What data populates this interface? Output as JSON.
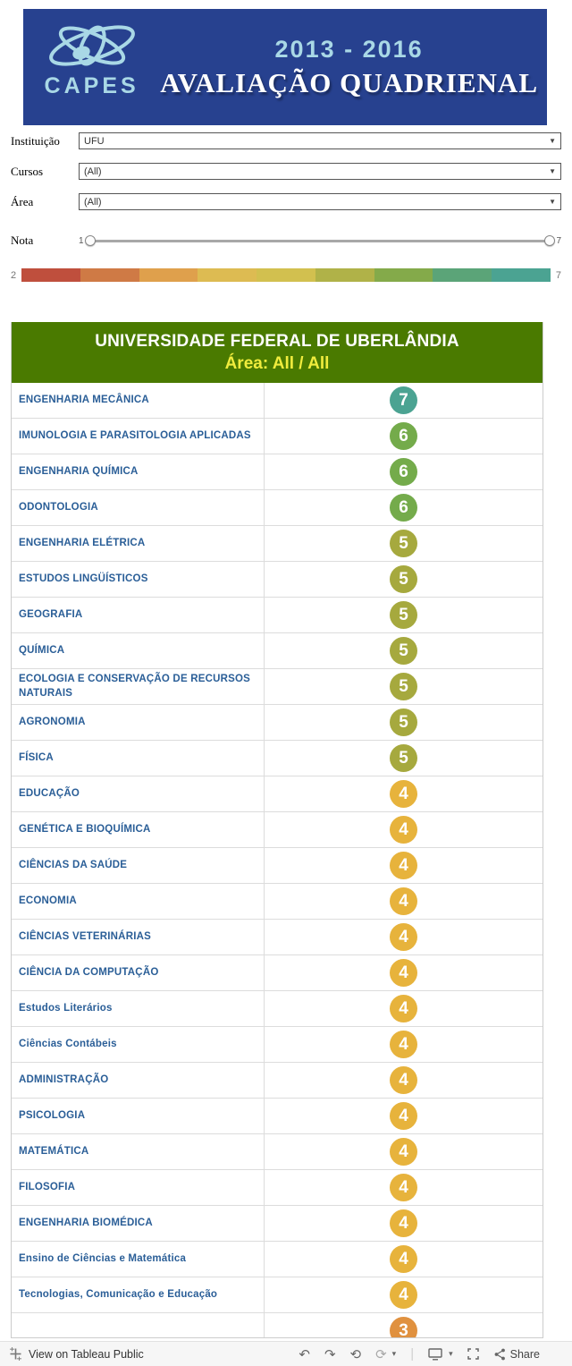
{
  "banner": {
    "logo": "CAPES",
    "period": "2013 - 2016",
    "title": "AVALIAÇÃO QUADRIENAL",
    "bg_color": "#27418f",
    "accent_color": "#a9d8e6"
  },
  "filters": [
    {
      "label": "Instituição",
      "value": "UFU"
    },
    {
      "label": "Cursos",
      "value": "(All)"
    },
    {
      "label": "Área",
      "value": "(All)"
    }
  ],
  "nota": {
    "label": "Nota",
    "min": "1",
    "max": "7"
  },
  "legend": {
    "min": "2",
    "max": "7",
    "colors": [
      "#bf4f3d",
      "#cf7a45",
      "#dfa04c",
      "#ddbb52",
      "#d2c04f",
      "#b0b248",
      "#84aa4a",
      "#5ba478",
      "#4ba392"
    ]
  },
  "report": {
    "title": "UNIVERSIDADE FEDERAL DE UBERLÂNDIA",
    "subtitle": "Área: All / All",
    "header_bg": "#4a7a00"
  },
  "score_colors": {
    "7": "#4ba392",
    "6": "#74ab4b",
    "5": "#a6a93e",
    "4": "#e7b33c",
    "3": "#e0913f"
  },
  "table": {
    "rows": [
      {
        "name": "ENGENHARIA MECÂNICA",
        "score": "7"
      },
      {
        "name": "IMUNOLOGIA E PARASITOLOGIA APLICADAS",
        "score": "6"
      },
      {
        "name": "ENGENHARIA QUÍMICA",
        "score": "6"
      },
      {
        "name": "ODONTOLOGIA",
        "score": "6"
      },
      {
        "name": "ENGENHARIA ELÉTRICA",
        "score": "5"
      },
      {
        "name": "ESTUDOS LINGÜÍSTICOS",
        "score": "5"
      },
      {
        "name": "GEOGRAFIA",
        "score": "5"
      },
      {
        "name": "QUÍMICA",
        "score": "5"
      },
      {
        "name": "ECOLOGIA E CONSERVAÇÃO DE RECURSOS NATURAIS",
        "score": "5"
      },
      {
        "name": "AGRONOMIA",
        "score": "5"
      },
      {
        "name": "FÍSICA",
        "score": "5"
      },
      {
        "name": "EDUCAÇÃO",
        "score": "4"
      },
      {
        "name": "GENÉTICA E BIOQUÍMICA",
        "score": "4"
      },
      {
        "name": "CIÊNCIAS DA SAÚDE",
        "score": "4"
      },
      {
        "name": "ECONOMIA",
        "score": "4"
      },
      {
        "name": "CIÊNCIAS VETERINÁRIAS",
        "score": "4"
      },
      {
        "name": "CIÊNCIA DA COMPUTAÇÃO",
        "score": "4"
      },
      {
        "name": "Estudos Literários",
        "score": "4"
      },
      {
        "name": "Ciências Contábeis",
        "score": "4"
      },
      {
        "name": "ADMINISTRAÇÃO",
        "score": "4"
      },
      {
        "name": "PSICOLOGIA",
        "score": "4"
      },
      {
        "name": "MATEMÁTICA",
        "score": "4"
      },
      {
        "name": "FILOSOFIA",
        "score": "4"
      },
      {
        "name": "ENGENHARIA BIOMÉDICA",
        "score": "4"
      },
      {
        "name": "Ensino de Ciências e Matemática",
        "score": "4"
      },
      {
        "name": "Tecnologias, Comunicação e Educação",
        "score": "4"
      },
      {
        "name": "",
        "score": "3"
      }
    ]
  },
  "footer": {
    "brand": "View on Tableau Public",
    "share_label": "Share",
    "icons": {
      "undo": "↶",
      "redo": "↷",
      "revert": "⟲",
      "refresh": "⟳",
      "caret": "▾"
    }
  }
}
